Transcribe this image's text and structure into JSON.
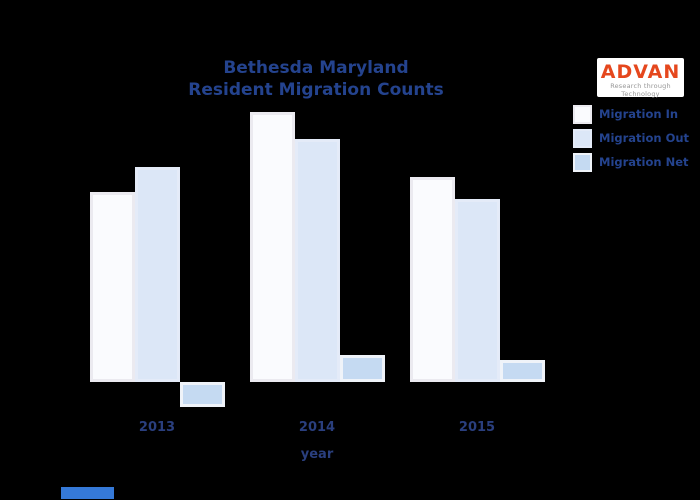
{
  "title": {
    "line1": "Bethesda Maryland",
    "line2": "Resident Migration Counts"
  },
  "logo": {
    "name": "ADVAN",
    "tagline": "Research through Technology",
    "brand_color": "#e5471d"
  },
  "legend": [
    {
      "label": "Migration In",
      "color": "#fafbfe",
      "border": "#ebeaf0"
    },
    {
      "label": "Migration Out",
      "color": "#dce7f7",
      "border": "#e4ebf8"
    },
    {
      "label": "Migration Net",
      "color": "#c5daf2",
      "border": "#eff3f9"
    }
  ],
  "chart_data": {
    "type": "bar",
    "title": "Bethesda Maryland Resident Migration Counts",
    "categories": [
      "2013",
      "2014",
      "2015"
    ],
    "series": [
      {
        "name": "Migration In",
        "values": [
          190,
          270,
          205
        ]
      },
      {
        "name": "Migration Out",
        "values": [
          215,
          243,
          183
        ]
      },
      {
        "name": "Migration Net",
        "values": [
          -25,
          27,
          22
        ]
      }
    ],
    "xlabel": "year",
    "ylabel": "",
    "ylim": [
      -50,
      300
    ],
    "grid": false,
    "legend_position": "upper right",
    "y_axis_labeled": false,
    "value_units": "relative; no y-axis tick labels visible, values estimated from bar heights"
  },
  "colors": {
    "background": "#000000",
    "text": "#24438e",
    "accent": "#3579d8"
  }
}
